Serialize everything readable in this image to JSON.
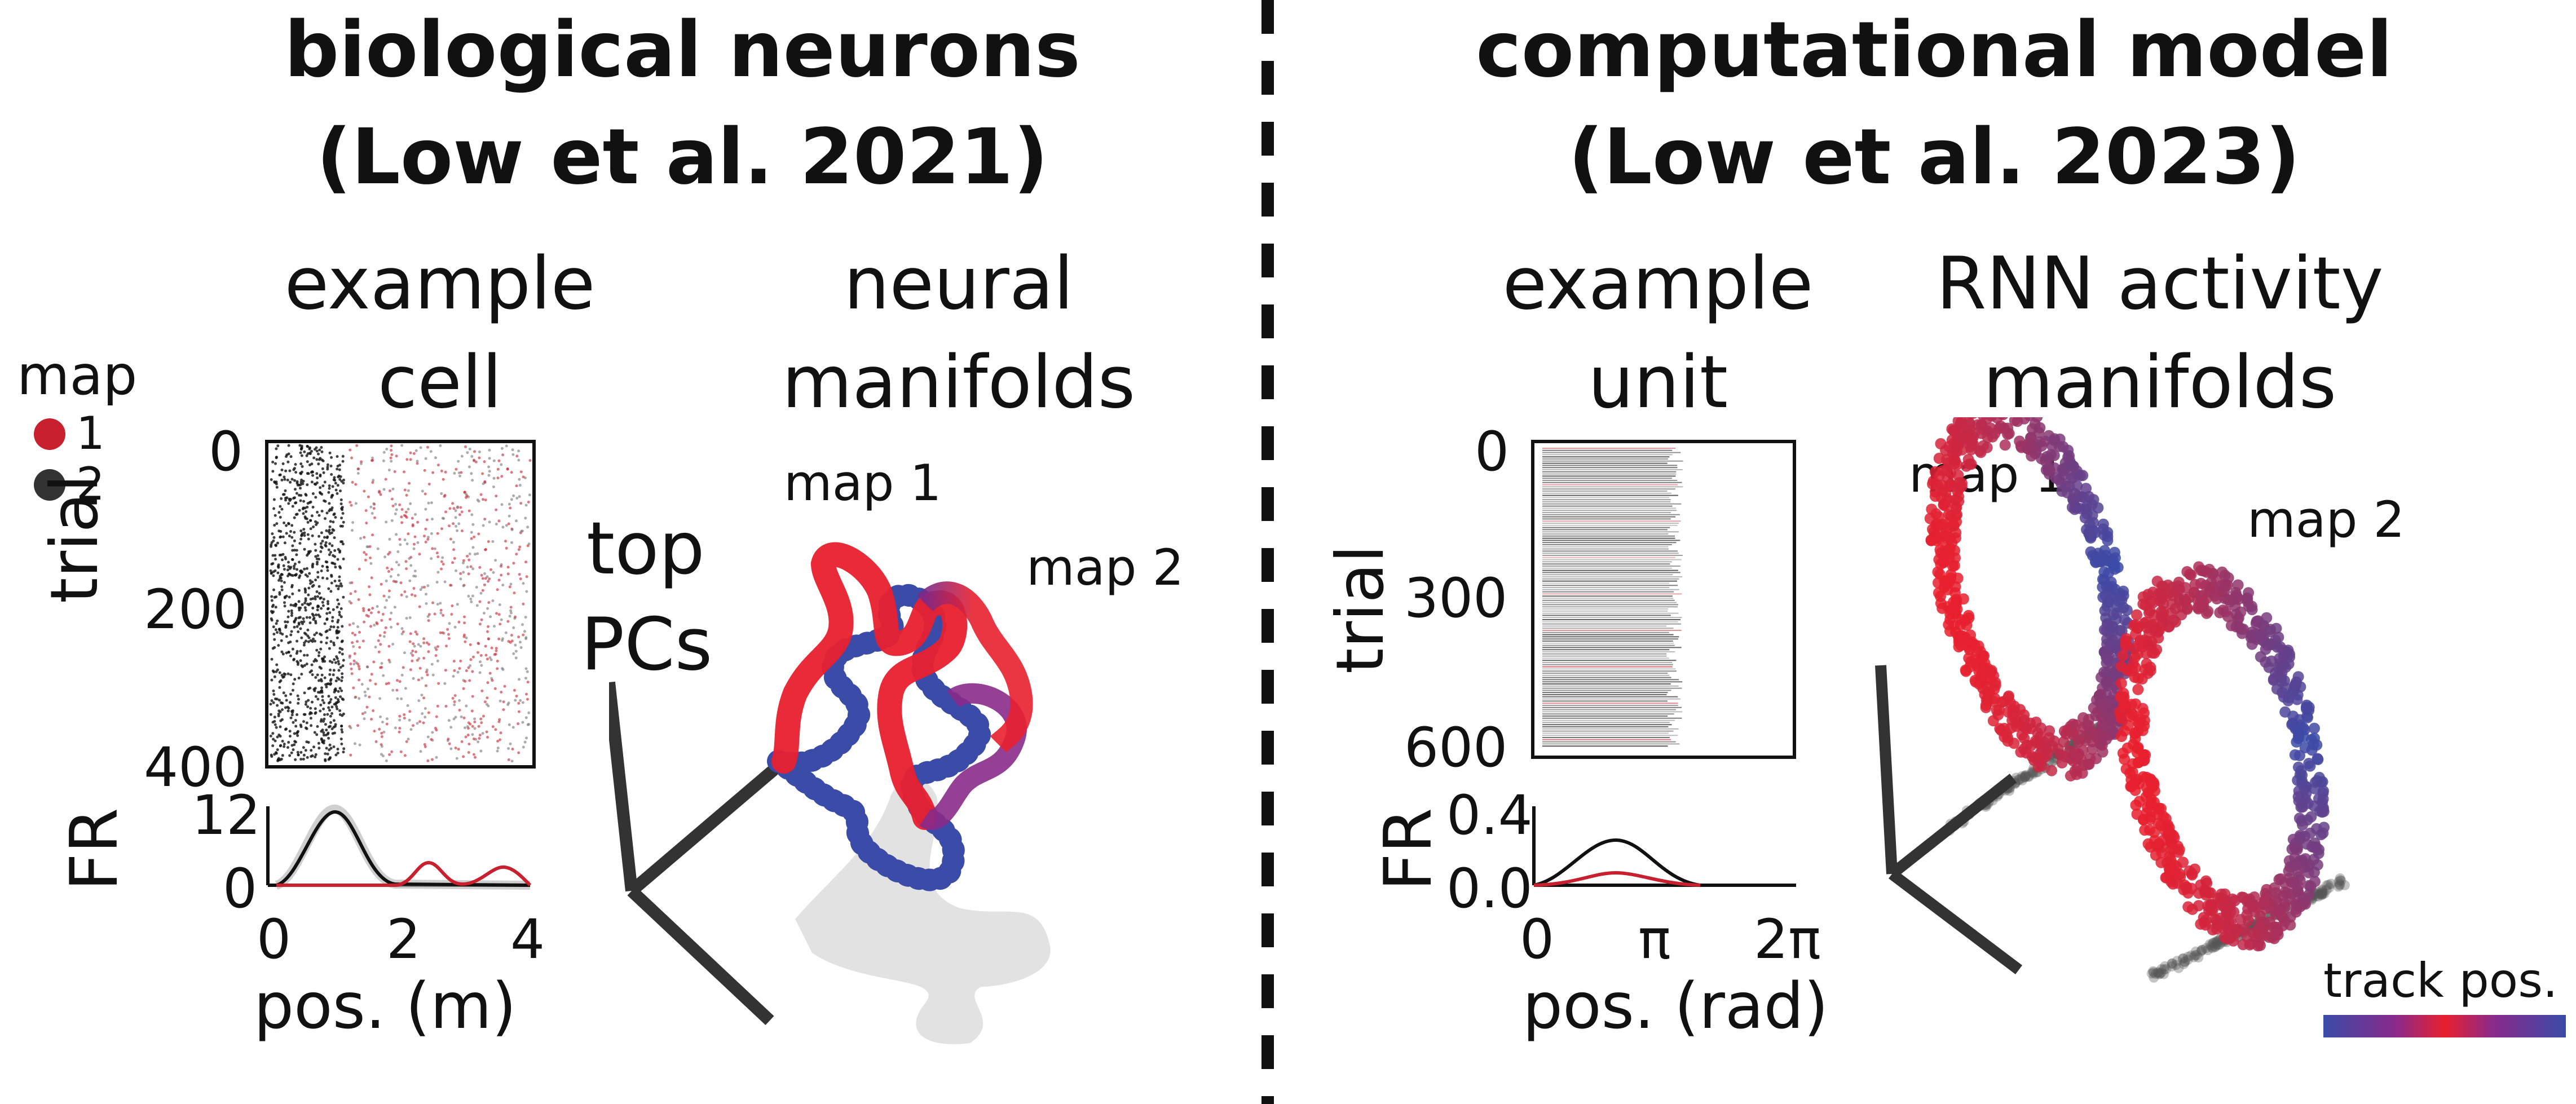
{
  "left": {
    "title_line1": "biological neurons",
    "title_line2": "(Low et al. 2021)",
    "cell_title_1": "example",
    "cell_title_2": "cell",
    "manifold_title_1": "neural",
    "manifold_title_2": "manifolds",
    "legend_title": "map",
    "legend_items": [
      {
        "label": "1",
        "color": "#c8202e"
      },
      {
        "label": "2",
        "color": "#333333"
      }
    ],
    "raster": {
      "ylabel": "trial",
      "yticks": [
        "0",
        "200",
        "400"
      ]
    },
    "fr": {
      "ylabel": "FR",
      "yticks": [
        "12",
        "0"
      ],
      "xticks": [
        "0",
        "2",
        "4"
      ],
      "xlabel": "pos. (m)"
    },
    "top_pcs_1": "top",
    "top_pcs_2": "PCs",
    "map1_label": "map 1",
    "map2_label": "map 2"
  },
  "right": {
    "title_line1": "computational model",
    "title_line2": "(Low et al. 2023)",
    "unit_title_1": "example",
    "unit_title_2": "unit",
    "manifold_title_1": "RNN activity",
    "manifold_title_2": "manifolds",
    "raster": {
      "ylabel": "trial",
      "yticks": [
        "0",
        "300",
        "600"
      ]
    },
    "fr": {
      "ylabel": "FR",
      "yticks": [
        "0.4",
        "0.0"
      ],
      "xticks": [
        "0",
        "π",
        "2π"
      ],
      "xlabel": "pos. (rad)"
    },
    "map1_label": "map 1",
    "map2_label": "map 2",
    "colorbar_label": "track pos."
  },
  "colors": {
    "map1": "#e8202e",
    "map2": "#3b4ba8",
    "mid": "#7a2a8a",
    "shadow": "#d9d9d9",
    "black": "#111111"
  }
}
